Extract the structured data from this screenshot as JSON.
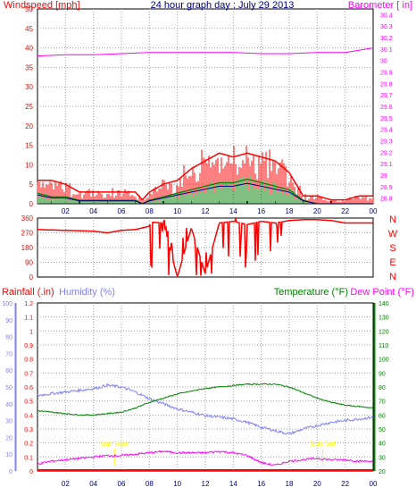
{
  "chart_data": [
    {
      "type": "line",
      "panel": "wind-barometer",
      "title": "24 hour graph day : July 29 2013",
      "left_axis_label": "Windspeed [mph]",
      "right_axis_label": "Barometer [ in]",
      "y_left_ticks": [
        "0",
        "5",
        "10",
        "15",
        "20",
        "25",
        "30",
        "35",
        "40",
        "45",
        "50"
      ],
      "y_right_ticks": [
        "28.8",
        "28.9",
        "29",
        "29.1",
        "29.2",
        "29.3",
        "29.4",
        "29.5",
        "29.6",
        "29.7",
        "29.8",
        "29.9",
        "30",
        "30.1",
        "30.2",
        "30.3",
        "30.4"
      ],
      "x_ticks": [
        "02",
        "04",
        "06",
        "08",
        "10",
        "12",
        "14",
        "16",
        "18",
        "20",
        "22",
        "00"
      ],
      "ylim_left": [
        0,
        50
      ],
      "ylim_right": [
        28.75,
        30.45
      ],
      "grid": true,
      "colors": {
        "gust": "#ff0000",
        "average": "#008000",
        "direction_avg": "#000080",
        "barometer": "#ff00ff",
        "title": "#000080"
      },
      "series": [
        {
          "key": "barometer",
          "x": [
            0,
            2,
            4,
            6,
            8,
            10,
            12,
            14,
            16,
            18,
            20,
            22,
            24
          ],
          "values": [
            30.04,
            30.05,
            30.05,
            30.06,
            30.07,
            30.07,
            30.07,
            30.07,
            30.06,
            30.06,
            30.07,
            30.07,
            30.11
          ]
        },
        {
          "key": "gust",
          "x": [
            0,
            1,
            2,
            3,
            4,
            5,
            6,
            7,
            7.5,
            8,
            9,
            10,
            11,
            12,
            13,
            14,
            15,
            16,
            17,
            18,
            19,
            20,
            21,
            22,
            23,
            24
          ],
          "values": [
            6,
            6,
            5,
            3,
            3,
            3,
            3,
            3,
            1,
            3,
            5,
            6,
            9,
            11,
            13,
            12,
            13,
            12,
            11,
            8,
            2,
            2,
            1,
            1,
            2,
            2
          ]
        },
        {
          "key": "average",
          "x": [
            0,
            1,
            2,
            3,
            4,
            5,
            6,
            7,
            7.5,
            8,
            9,
            10,
            11,
            12,
            13,
            14,
            15,
            16,
            17,
            18,
            19,
            20,
            21,
            22,
            23,
            24
          ],
          "values": [
            3,
            2,
            2,
            1,
            1,
            1,
            1,
            1,
            0,
            1,
            2,
            3,
            4,
            5,
            6,
            6,
            7,
            6,
            5,
            4,
            1,
            0,
            0,
            0,
            0,
            0
          ]
        }
      ]
    },
    {
      "type": "line",
      "panel": "wind-direction",
      "y_left_ticks": [
        "360",
        "270",
        "180",
        "90",
        "0"
      ],
      "y_right_letters": [
        "N",
        "W",
        "S",
        "E",
        "N"
      ],
      "ylim": [
        0,
        360
      ],
      "grid": true,
      "colors": {
        "direction": "#ff0000"
      },
      "series": [
        {
          "key": "direction",
          "x": [
            0,
            2,
            4,
            5,
            6,
            7,
            8,
            8.1,
            9,
            10,
            11,
            12,
            13,
            14,
            15,
            16,
            17,
            18,
            19,
            20,
            21,
            22,
            24
          ],
          "values": [
            290,
            285,
            280,
            270,
            285,
            290,
            310,
            335,
            330,
            0,
            300,
            20,
            330,
            340,
            320,
            340,
            330,
            345,
            350,
            350,
            345,
            330,
            330
          ]
        }
      ]
    },
    {
      "type": "line",
      "panel": "rain-humidity-temperature",
      "labels": {
        "rainfall": "Rainfall (.in)",
        "humidity": "Humidity (%)",
        "temperature": "Temperature (°F)",
        "dewpoint": "Dew Point (°F)"
      },
      "rain_ticks": [
        "0",
        "0.1",
        "0.2",
        "0.3",
        "0.4",
        "0.5",
        "0.6",
        "0.7",
        "0.8",
        "0.9",
        "1",
        "1.1",
        "1.2"
      ],
      "humidity_ticks": [
        "0",
        "10",
        "20",
        "30",
        "40",
        "50",
        "60",
        "70",
        "80",
        "90",
        "100"
      ],
      "temp_ticks": [
        "20",
        "30",
        "40",
        "50",
        "60",
        "70",
        "80",
        "90",
        "100",
        "110",
        "120",
        "130",
        "140"
      ],
      "ylim_rain": [
        0,
        1.2
      ],
      "ylim_humidity": [
        0,
        100
      ],
      "ylim_temp": [
        20,
        140
      ],
      "annotations": [
        {
          "text": "Sun Rise",
          "x": 5.5
        },
        {
          "text": "Sun Set",
          "x": 20.4
        }
      ],
      "colors": {
        "rainfall": "#ff0000",
        "humidity": "#8080ff",
        "temperature": "#008000",
        "dewpoint": "#ff00ff",
        "sun": "#ffff00"
      },
      "series": [
        {
          "key": "temperature",
          "x": [
            0,
            1,
            2,
            3,
            4,
            5,
            6,
            7,
            8,
            9,
            10,
            11,
            12,
            13,
            14,
            15,
            16,
            17,
            18,
            19,
            20,
            21,
            22,
            23,
            24
          ],
          "values": [
            63,
            62,
            61,
            60,
            60,
            61,
            62,
            65,
            69,
            72,
            75,
            77,
            79,
            80,
            81,
            82,
            82,
            82,
            80,
            76,
            72,
            69,
            67,
            66,
            65
          ]
        },
        {
          "key": "humidity",
          "x": [
            0,
            1,
            2,
            3,
            4,
            5,
            6,
            7,
            8,
            9,
            10,
            11,
            12,
            13,
            14,
            15,
            16,
            17,
            18,
            19,
            20,
            21,
            22,
            23,
            24
          ],
          "values": [
            45,
            46,
            47,
            48,
            49,
            51,
            50,
            47,
            43,
            40,
            37,
            35,
            33,
            32,
            31,
            29,
            26,
            24,
            22,
            25,
            27,
            29,
            30,
            31,
            32
          ]
        },
        {
          "key": "dewpoint",
          "x": [
            0,
            1,
            2,
            3,
            4,
            5,
            6,
            7,
            8,
            9,
            10,
            11,
            12,
            13,
            14,
            15,
            16,
            17,
            18,
            19,
            20,
            21,
            22,
            23,
            24
          ],
          "values": [
            25,
            27,
            28,
            29,
            30,
            31,
            31,
            32,
            33,
            34,
            33,
            33,
            33,
            34,
            33,
            31,
            26,
            24,
            27,
            28,
            29,
            28,
            28,
            27,
            27
          ]
        },
        {
          "key": "rainfall",
          "x": [
            0,
            24
          ],
          "values": [
            0,
            0
          ]
        }
      ]
    }
  ]
}
